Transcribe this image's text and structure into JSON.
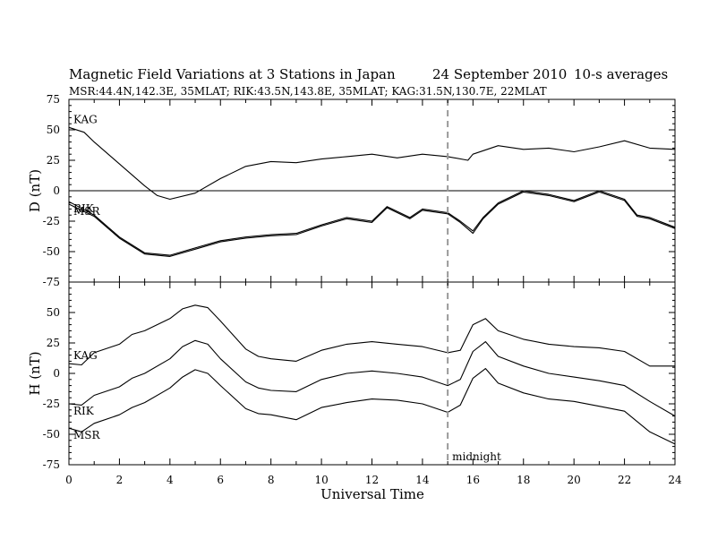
{
  "chart_data": {
    "type": "line",
    "title": "Magnetic Field Variations at 3 Stations in Japan",
    "date": "24 September 2010",
    "averaging": "10-s averages",
    "subtitle": "MSR:44.4N,142.3E, 35MLAT;   RIK:43.5N,143.8E, 35MLAT;   KAG:31.5N,130.7E, 22MLAT",
    "xlabel": "Universal Time",
    "xlim": [
      0,
      24
    ],
    "xticks": [
      "0",
      "2",
      "4",
      "6",
      "8",
      "10",
      "12",
      "14",
      "16",
      "18",
      "20",
      "22",
      "24"
    ],
    "midnight": {
      "x": 15,
      "label": "midnight"
    },
    "panels": [
      {
        "ylabel": "D (nT)",
        "ylim": [
          -75,
          75
        ],
        "yticks": [
          "75",
          "50",
          "25",
          "0",
          "-25",
          "-50",
          "-75"
        ],
        "zero_line": true,
        "series": [
          {
            "name": "KAG",
            "x": [
              0,
              0.6,
              1,
              2,
              3,
              3.5,
              4,
              5,
              6,
              7,
              8,
              9,
              10,
              11,
              12,
              13,
              14,
              15,
              15.8,
              16,
              17,
              18,
              19,
              20,
              21,
              22,
              23,
              24
            ],
            "values": [
              52,
              48,
              40,
              22,
              4,
              -4,
              -7,
              -2,
              10,
              20,
              24,
              23,
              26,
              28,
              30,
              27,
              30,
              28,
              25,
              30,
              37,
              34,
              35,
              32,
              36,
              41,
              35,
              34
            ]
          },
          {
            "name": "RIK",
            "x": [
              0,
              1,
              2,
              3,
              4,
              5,
              6,
              7,
              8,
              9,
              10,
              11,
              12,
              12.6,
              13.5,
              14,
              15,
              15.5,
              16,
              16.4,
              17,
              18,
              19,
              20,
              21,
              22,
              22.5,
              23,
              24
            ],
            "values": [
              -9,
              -20,
              -38,
              -51,
              -53,
              -47,
              -41,
              -38,
              -36,
              -35,
              -28,
              -22,
              -25,
              -13,
              -22,
              -15,
              -18,
              -25,
              -33,
              -22,
              -10,
              0,
              -3,
              -8,
              0,
              -7,
              -20,
              -22,
              -30
            ]
          },
          {
            "name": "MSR",
            "x": [
              0,
              1,
              2,
              3,
              4,
              5,
              6,
              7,
              8,
              9,
              10,
              11,
              12,
              12.6,
              13.5,
              14,
              15,
              15.5,
              16,
              16.4,
              17,
              18,
              19,
              20,
              21,
              22,
              22.5,
              23,
              24
            ],
            "values": [
              -11,
              -21,
              -39,
              -52,
              -54,
              -48,
              -42,
              -39,
              -37,
              -36,
              -29,
              -23,
              -26,
              -14,
              -23,
              -16,
              -19,
              -26,
              -35,
              -23,
              -11,
              -1,
              -4,
              -9,
              -1,
              -8,
              -21,
              -23,
              -31
            ]
          }
        ]
      },
      {
        "ylabel": "H (nT)",
        "ylim": [
          -75,
          75
        ],
        "yticks": [
          "50",
          "25",
          "0",
          "-25",
          "-50",
          "-75"
        ],
        "zero_line": false,
        "series": [
          {
            "name": "KAG",
            "x": [
              0,
              0.5,
              1,
              2,
              2.5,
              3,
              4,
              4.5,
              5,
              5.5,
              6,
              7,
              7.5,
              8,
              9,
              10,
              11,
              12,
              13,
              14,
              15,
              15.5,
              16,
              16.5,
              17,
              18,
              19,
              20,
              21,
              22,
              23,
              24
            ],
            "values": [
              8,
              7,
              17,
              24,
              32,
              35,
              45,
              53,
              56,
              54,
              43,
              20,
              14,
              12,
              10,
              19,
              24,
              26,
              24,
              22,
              17,
              19,
              40,
              45,
              35,
              28,
              24,
              22,
              21,
              18,
              6,
              6
            ]
          },
          {
            "name": "RIK",
            "x": [
              0,
              0.5,
              1,
              2,
              2.5,
              3,
              4,
              4.5,
              5,
              5.5,
              6,
              7,
              7.5,
              8,
              9,
              10,
              11,
              12,
              13,
              14,
              15,
              15.5,
              16,
              16.5,
              17,
              18,
              19,
              20,
              21,
              22,
              23,
              24
            ],
            "values": [
              -25,
              -26,
              -18,
              -11,
              -4,
              0,
              12,
              22,
              27,
              24,
              12,
              -7,
              -12,
              -14,
              -15,
              -5,
              0,
              2,
              0,
              -3,
              -10,
              -5,
              18,
              26,
              14,
              6,
              0,
              -3,
              -6,
              -10,
              -23,
              -35
            ]
          },
          {
            "name": "MSR",
            "x": [
              0,
              0.5,
              1,
              2,
              2.5,
              3,
              4,
              4.5,
              5,
              5.5,
              6,
              7,
              7.5,
              8,
              9,
              10,
              11,
              12,
              13,
              14,
              15,
              15.5,
              16,
              16.5,
              17,
              18,
              19,
              20,
              21,
              22,
              23,
              24
            ],
            "values": [
              -45,
              -48,
              -41,
              -34,
              -28,
              -24,
              -12,
              -3,
              3,
              0,
              -10,
              -29,
              -33,
              -34,
              -38,
              -28,
              -24,
              -21,
              -22,
              -25,
              -32,
              -26,
              -4,
              4,
              -8,
              -16,
              -21,
              -23,
              -27,
              -31,
              -48,
              -58
            ]
          }
        ]
      }
    ]
  }
}
